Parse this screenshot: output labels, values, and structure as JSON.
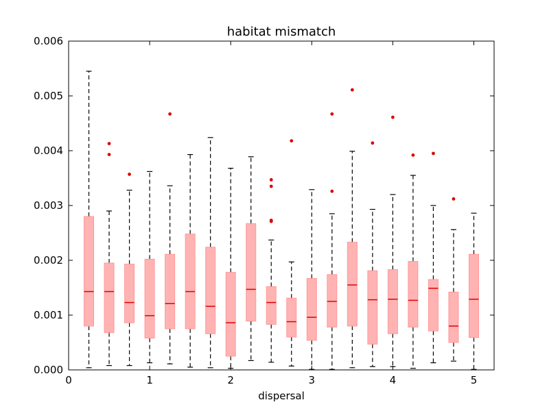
{
  "chart_data": {
    "type": "box",
    "title": "habitat mismatch",
    "xlabel": "dispersal",
    "ylabel": "",
    "xlim": [
      0,
      5.25
    ],
    "ylim": [
      0,
      0.006
    ],
    "x_ticks": [
      0,
      1,
      2,
      3,
      4,
      5
    ],
    "x_tick_labels": [
      "0",
      "1",
      "2",
      "3",
      "4",
      "5"
    ],
    "y_ticks": [
      0,
      0.001,
      0.002,
      0.003,
      0.004,
      0.005,
      0.006
    ],
    "y_tick_labels": [
      "0.000",
      "0.001",
      "0.002",
      "0.003",
      "0.004",
      "0.005",
      "0.006"
    ],
    "grid": false,
    "colors": {
      "box_fill": "#ffb3b3",
      "box_edge": "#ff9999",
      "median": "#e00000",
      "whisker": "#000000",
      "flier": "#dd0000"
    },
    "boxes": [
      {
        "x": 0.25,
        "whisker_low": 4e-05,
        "q1": 0.0008,
        "median": 0.00143,
        "q3": 0.0028,
        "whisker_high": 0.00545,
        "fliers": []
      },
      {
        "x": 0.5,
        "whisker_low": 8e-05,
        "q1": 0.00068,
        "median": 0.00143,
        "q3": 0.00195,
        "whisker_high": 0.0029,
        "fliers": [
          0.00393,
          0.00413
        ]
      },
      {
        "x": 0.75,
        "whisker_low": 8e-05,
        "q1": 0.00086,
        "median": 0.00123,
        "q3": 0.00193,
        "whisker_high": 0.00328,
        "fliers": [
          0.00357
        ]
      },
      {
        "x": 1.0,
        "whisker_low": 0.00013,
        "q1": 0.00058,
        "median": 0.00099,
        "q3": 0.00202,
        "whisker_high": 0.00362,
        "fliers": []
      },
      {
        "x": 1.25,
        "whisker_low": 0.00011,
        "q1": 0.00075,
        "median": 0.00121,
        "q3": 0.00211,
        "whisker_high": 0.00336,
        "fliers": [
          0.00467
        ]
      },
      {
        "x": 1.5,
        "whisker_low": 5e-05,
        "q1": 0.00075,
        "median": 0.00143,
        "q3": 0.00248,
        "whisker_high": 0.00393,
        "fliers": []
      },
      {
        "x": 1.75,
        "whisker_low": 4e-05,
        "q1": 0.00066,
        "median": 0.00116,
        "q3": 0.00224,
        "whisker_high": 0.00424,
        "fliers": []
      },
      {
        "x": 2.0,
        "whisker_low": 3e-05,
        "q1": 0.00025,
        "median": 0.00086,
        "q3": 0.00178,
        "whisker_high": 0.00368,
        "fliers": []
      },
      {
        "x": 2.25,
        "whisker_low": 0.00017,
        "q1": 0.00089,
        "median": 0.00147,
        "q3": 0.00267,
        "whisker_high": 0.00389,
        "fliers": []
      },
      {
        "x": 2.5,
        "whisker_low": 0.00014,
        "q1": 0.00083,
        "median": 0.00123,
        "q3": 0.00152,
        "whisker_high": 0.00237,
        "fliers": [
          0.00271,
          0.00273,
          0.00335,
          0.00347
        ]
      },
      {
        "x": 2.75,
        "whisker_low": 7e-05,
        "q1": 0.0006,
        "median": 0.00088,
        "q3": 0.00131,
        "whisker_high": 0.00197,
        "fliers": [
          0.00418
        ]
      },
      {
        "x": 3.0,
        "whisker_low": 1e-05,
        "q1": 0.00054,
        "median": 0.00096,
        "q3": 0.00167,
        "whisker_high": 0.00329,
        "fliers": []
      },
      {
        "x": 3.25,
        "whisker_low": 1e-05,
        "q1": 0.00078,
        "median": 0.00125,
        "q3": 0.00174,
        "whisker_high": 0.00285,
        "fliers": [
          0.00326,
          0.00467
        ]
      },
      {
        "x": 3.5,
        "whisker_low": 4e-05,
        "q1": 0.0008,
        "median": 0.00155,
        "q3": 0.00233,
        "whisker_high": 0.00399,
        "fliers": [
          0.00511
        ]
      },
      {
        "x": 3.75,
        "whisker_low": 6e-05,
        "q1": 0.00047,
        "median": 0.00128,
        "q3": 0.00181,
        "whisker_high": 0.00293,
        "fliers": [
          0.00414
        ]
      },
      {
        "x": 4.0,
        "whisker_low": 6e-05,
        "q1": 0.00066,
        "median": 0.00129,
        "q3": 0.00183,
        "whisker_high": 0.0032,
        "fliers": [
          0.00461
        ]
      },
      {
        "x": 4.25,
        "whisker_low": 3e-05,
        "q1": 0.00078,
        "median": 0.00127,
        "q3": 0.00198,
        "whisker_high": 0.00355,
        "fliers": [
          0.00392
        ]
      },
      {
        "x": 4.5,
        "whisker_low": 0.00013,
        "q1": 0.00071,
        "median": 0.00149,
        "q3": 0.00165,
        "whisker_high": 0.003,
        "fliers": [
          0.00395
        ]
      },
      {
        "x": 4.75,
        "whisker_low": 0.00016,
        "q1": 0.0005,
        "median": 0.0008,
        "q3": 0.00142,
        "whisker_high": 0.00256,
        "fliers": [
          0.00312
        ]
      },
      {
        "x": 5.0,
        "whisker_low": 1e-05,
        "q1": 0.00059,
        "median": 0.00129,
        "q3": 0.00211,
        "whisker_high": 0.00286,
        "fliers": []
      }
    ]
  }
}
